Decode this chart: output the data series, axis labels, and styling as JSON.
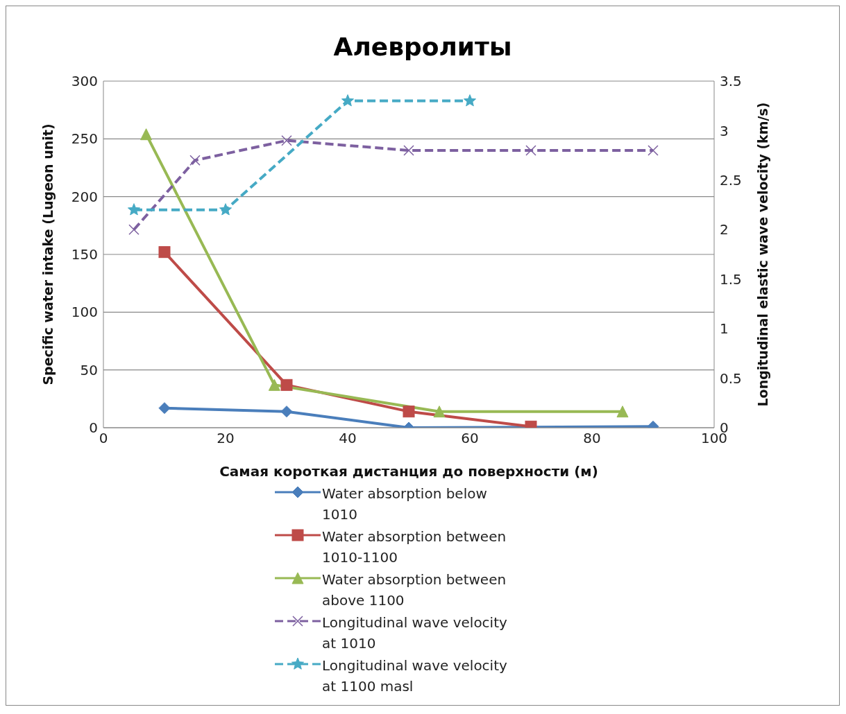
{
  "chart_data": {
    "type": "line",
    "title": "Алевролиты",
    "xlabel": "Самая короткая дистанция до поверхности (м)",
    "ylabel": "Specific water intake (Lugeon unit)",
    "y2label": "Longitudinal elastic wave velocity (km/s)",
    "xlim": [
      0,
      100
    ],
    "xticks": [
      0,
      20,
      40,
      60,
      80,
      100
    ],
    "ylim": [
      0,
      300
    ],
    "yticks": [
      0,
      50,
      100,
      150,
      200,
      250,
      300
    ],
    "y2lim": [
      0,
      3.5
    ],
    "y2ticks": [
      0,
      0.5,
      1,
      1.5,
      2,
      2.5,
      3,
      3.5
    ],
    "grid": "y",
    "legend": "bottom",
    "series": [
      {
        "name": "Water absorption below 1010",
        "color": "#4a7ebb",
        "marker": "diamond",
        "line_style": "solid",
        "x": [
          10,
          30,
          50,
          90
        ],
        "values": [
          17,
          14,
          0,
          1
        ]
      },
      {
        "name": "Water absorption between 1010-1100",
        "color": "#be4b48",
        "marker": "square",
        "line_style": "solid",
        "x": [
          10,
          30,
          50,
          70
        ],
        "values": [
          152,
          37,
          14,
          1
        ]
      },
      {
        "name": "Water absorption between above 1100",
        "color": "#98b954",
        "marker": "triangle",
        "line_style": "solid",
        "x": [
          7,
          28,
          55,
          85
        ],
        "values": [
          254,
          37,
          14,
          14
        ]
      },
      {
        "name": "Longitudinal wave velocity at 1010",
        "color": "#7d60a0",
        "marker": "cross",
        "line_style": "dashed",
        "axis": "y2",
        "x": [
          5,
          15,
          30,
          50,
          70,
          90
        ],
        "values": [
          2.0,
          2.7,
          2.9,
          2.8,
          2.8,
          2.8
        ]
      },
      {
        "name": "Longitudinal wave velocity at 1100 masl",
        "color": "#46aac5",
        "marker": "star",
        "line_style": "dashed",
        "axis": "y2",
        "x": [
          5,
          20,
          40,
          60
        ],
        "values": [
          2.2,
          2.2,
          3.3,
          3.3
        ]
      }
    ]
  }
}
